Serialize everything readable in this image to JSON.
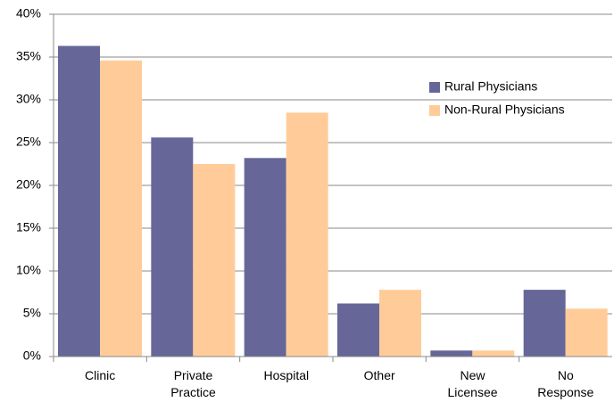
{
  "chart_data": {
    "type": "bar",
    "categories": [
      "Clinic",
      "Private\nPractice",
      "Hospital",
      "Other",
      "New\nLicensee",
      "No\nResponse"
    ],
    "series": [
      {
        "name": "Rural Physicians",
        "color": "#666699",
        "values": [
          36.3,
          25.6,
          23.2,
          6.2,
          0.7,
          7.8
        ]
      },
      {
        "name": "Non-Rural Physicians",
        "color": "#ffcc99",
        "values": [
          34.6,
          22.5,
          28.5,
          7.8,
          0.7,
          5.6
        ]
      }
    ],
    "ylim": [
      0,
      40
    ],
    "yticks": [
      {
        "value": 0,
        "label": "0%"
      },
      {
        "value": 5,
        "label": "5%"
      },
      {
        "value": 10,
        "label": "10%"
      },
      {
        "value": 15,
        "label": "15%"
      },
      {
        "value": 20,
        "label": "20%"
      },
      {
        "value": 25,
        "label": "25%"
      },
      {
        "value": 30,
        "label": "30%"
      },
      {
        "value": 35,
        "label": "35%"
      },
      {
        "value": 40,
        "label": "40%"
      }
    ],
    "grid": true,
    "legend": "upper right"
  }
}
